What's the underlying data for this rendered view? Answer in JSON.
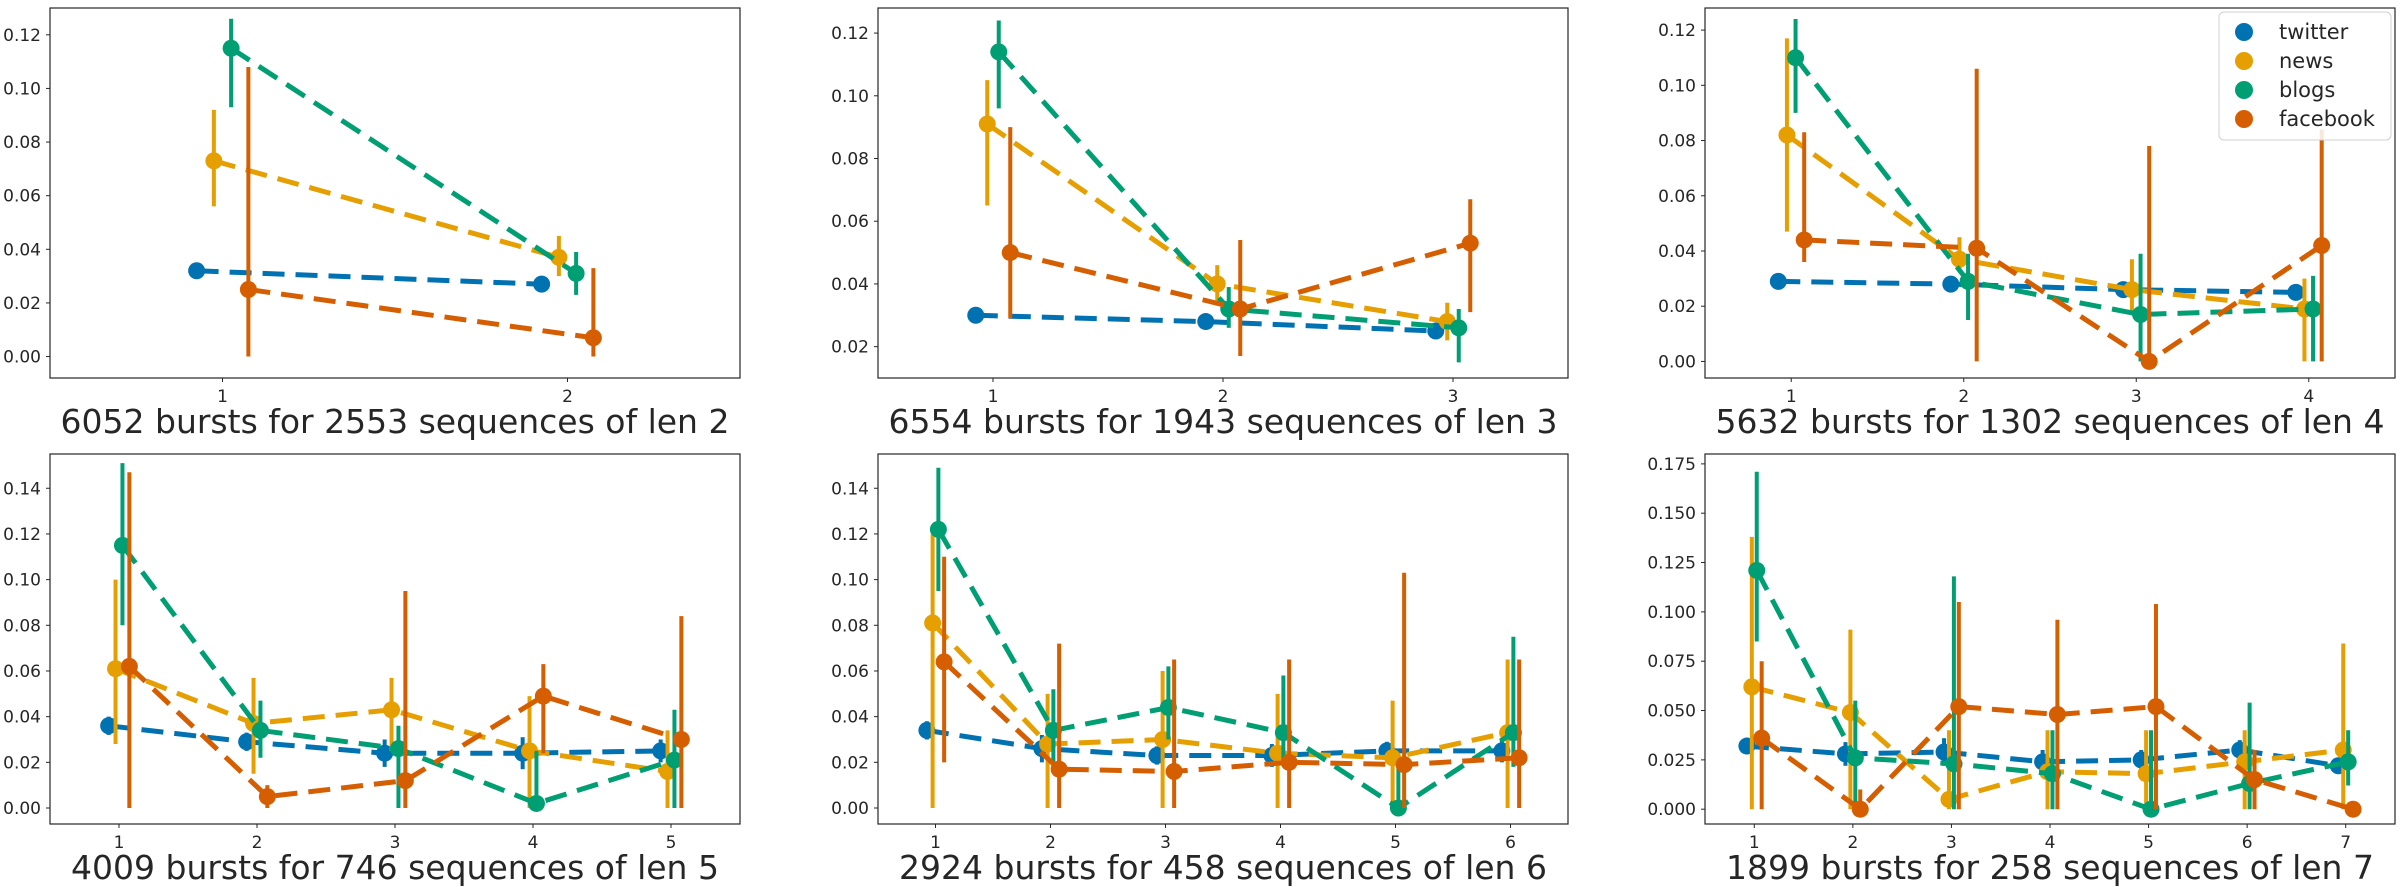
{
  "chart_data": {
    "type": "line",
    "style": "pointplot with error bars, dashed lines",
    "grid": false,
    "legend": {
      "placement": "top-right of third panel",
      "entries": [
        {
          "name": "twitter",
          "color": "#0072B2"
        },
        {
          "name": "news",
          "color": "#E69F00"
        },
        {
          "name": "blogs",
          "color": "#009E73"
        },
        {
          "name": "facebook",
          "color": "#D55E00"
        }
      ]
    },
    "panels": [
      {
        "title": "6052 bursts for 2553 sequences of len 2",
        "x": [
          1,
          2
        ],
        "ylim": [
          -0.008,
          0.13
        ],
        "yticks": [
          "0.00",
          "0.02",
          "0.04",
          "0.06",
          "0.08",
          "0.10",
          "0.12"
        ],
        "ytick_values": [
          0,
          0.02,
          0.04,
          0.06,
          0.08,
          0.1,
          0.12
        ],
        "series": [
          {
            "name": "twitter",
            "values": [
              0.032,
              0.027
            ],
            "err_low": [
              0.03,
              0.025
            ],
            "err_high": [
              0.034,
              0.029
            ]
          },
          {
            "name": "news",
            "values": [
              0.073,
              0.037
            ],
            "err_low": [
              0.056,
              0.03
            ],
            "err_high": [
              0.092,
              0.045
            ]
          },
          {
            "name": "blogs",
            "values": [
              0.115,
              0.031
            ],
            "err_low": [
              0.093,
              0.023
            ],
            "err_high": [
              0.126,
              0.039
            ]
          },
          {
            "name": "facebook",
            "values": [
              0.025,
              0.007
            ],
            "err_low": [
              0.0,
              0.0
            ],
            "err_high": [
              0.108,
              0.033
            ]
          }
        ]
      },
      {
        "title": "6554 bursts for 1943 sequences of len 3",
        "x": [
          1,
          2,
          3
        ],
        "ylim": [
          0.01,
          0.128
        ],
        "yticks": [
          "0.02",
          "0.04",
          "0.06",
          "0.08",
          "0.10",
          "0.12"
        ],
        "ytick_values": [
          0.02,
          0.04,
          0.06,
          0.08,
          0.1,
          0.12
        ],
        "series": [
          {
            "name": "twitter",
            "values": [
              0.03,
              0.028,
              0.025
            ],
            "err_low": [
              0.028,
              0.026,
              0.023
            ],
            "err_high": [
              0.032,
              0.03,
              0.027
            ]
          },
          {
            "name": "news",
            "values": [
              0.091,
              0.04,
              0.028
            ],
            "err_low": [
              0.065,
              0.034,
              0.022
            ],
            "err_high": [
              0.105,
              0.046,
              0.034
            ]
          },
          {
            "name": "blogs",
            "values": [
              0.114,
              0.032,
              0.026
            ],
            "err_low": [
              0.096,
              0.026,
              0.015
            ],
            "err_high": [
              0.124,
              0.039,
              0.032
            ]
          },
          {
            "name": "facebook",
            "values": [
              0.05,
              0.032,
              0.053
            ],
            "err_low": [
              0.029,
              0.017,
              0.031
            ],
            "err_high": [
              0.09,
              0.054,
              0.067
            ]
          }
        ]
      },
      {
        "title": "5632 bursts for 1302 sequences of len 4",
        "x": [
          1,
          2,
          3,
          4
        ],
        "ylim": [
          -0.006,
          0.128
        ],
        "yticks": [
          "0.00",
          "0.02",
          "0.04",
          "0.06",
          "0.08",
          "0.10",
          "0.12"
        ],
        "ytick_values": [
          0,
          0.02,
          0.04,
          0.06,
          0.08,
          0.1,
          0.12
        ],
        "series": [
          {
            "name": "twitter",
            "values": [
              0.029,
              0.028,
              0.026,
              0.025
            ],
            "err_low": [
              0.027,
              0.026,
              0.024,
              0.023
            ],
            "err_high": [
              0.031,
              0.03,
              0.028,
              0.027
            ]
          },
          {
            "name": "news",
            "values": [
              0.082,
              0.037,
              0.026,
              0.019
            ],
            "err_low": [
              0.047,
              0.033,
              0.017,
              0.0
            ],
            "err_high": [
              0.117,
              0.045,
              0.037,
              0.03
            ]
          },
          {
            "name": "blogs",
            "values": [
              0.11,
              0.029,
              0.017,
              0.019
            ],
            "err_low": [
              0.09,
              0.015,
              0.0,
              0.0
            ],
            "err_high": [
              0.124,
              0.039,
              0.039,
              0.031
            ]
          },
          {
            "name": "facebook",
            "values": [
              0.044,
              0.041,
              0.0,
              0.042
            ],
            "err_low": [
              0.036,
              0.0,
              0.0,
              0.0
            ],
            "err_high": [
              0.083,
              0.106,
              0.078,
              0.084
            ]
          }
        ]
      },
      {
        "title": "4009 bursts for 746 sequences of len 5",
        "x": [
          1,
          2,
          3,
          4,
          5
        ],
        "ylim": [
          -0.007,
          0.155
        ],
        "yticks": [
          "0.00",
          "0.02",
          "0.04",
          "0.06",
          "0.08",
          "0.10",
          "0.12",
          "0.14"
        ],
        "ytick_values": [
          0,
          0.02,
          0.04,
          0.06,
          0.08,
          0.1,
          0.12,
          0.14
        ],
        "series": [
          {
            "name": "twitter",
            "values": [
              0.036,
              0.029,
              0.024,
              0.024,
              0.025
            ],
            "err_low": [
              0.032,
              0.025,
              0.018,
              0.017,
              0.02
            ],
            "err_high": [
              0.04,
              0.033,
              0.03,
              0.031,
              0.03
            ]
          },
          {
            "name": "news",
            "values": [
              0.061,
              0.037,
              0.043,
              0.025,
              0.016
            ],
            "err_low": [
              0.028,
              0.015,
              0.025,
              0.0,
              0.0
            ],
            "err_high": [
              0.1,
              0.057,
              0.057,
              0.049,
              0.034
            ]
          },
          {
            "name": "blogs",
            "values": [
              0.115,
              0.034,
              0.026,
              0.002,
              0.021
            ],
            "err_low": [
              0.08,
              0.022,
              0.0,
              0.0,
              0.0
            ],
            "err_high": [
              0.151,
              0.047,
              0.036,
              0.025,
              0.043
            ]
          },
          {
            "name": "facebook",
            "values": [
              0.062,
              0.005,
              0.012,
              0.049,
              0.03
            ],
            "err_low": [
              0.0,
              0.0,
              0.0,
              0.024,
              0.0
            ],
            "err_high": [
              0.147,
              0.01,
              0.095,
              0.063,
              0.084
            ]
          }
        ]
      },
      {
        "title": "2924 bursts for 458 sequences of len 6",
        "x": [
          1,
          2,
          3,
          4,
          5,
          6
        ],
        "ylim": [
          -0.007,
          0.155
        ],
        "yticks": [
          "0.00",
          "0.02",
          "0.04",
          "0.06",
          "0.08",
          "0.10",
          "0.12",
          "0.14"
        ],
        "ytick_values": [
          0,
          0.02,
          0.04,
          0.06,
          0.08,
          0.1,
          0.12,
          0.14
        ],
        "series": [
          {
            "name": "twitter",
            "values": [
              0.034,
              0.026,
              0.023,
              0.023,
              0.025,
              0.025
            ],
            "err_low": [
              0.03,
              0.02,
              0.019,
              0.018,
              0.022,
              0.02
            ],
            "err_high": [
              0.038,
              0.032,
              0.027,
              0.028,
              0.029,
              0.03
            ]
          },
          {
            "name": "news",
            "values": [
              0.081,
              0.028,
              0.03,
              0.024,
              0.022,
              0.033
            ],
            "err_low": [
              0.0,
              0.0,
              0.0,
              0.0,
              0.0,
              0.0
            ],
            "err_high": [
              0.12,
              0.05,
              0.06,
              0.05,
              0.047,
              0.065
            ]
          },
          {
            "name": "blogs",
            "values": [
              0.122,
              0.034,
              0.044,
              0.033,
              0.0,
              0.033
            ],
            "err_low": [
              0.095,
              0.018,
              0.03,
              0.02,
              0.0,
              0.018
            ],
            "err_high": [
              0.149,
              0.052,
              0.062,
              0.058,
              0.018,
              0.075
            ]
          },
          {
            "name": "facebook",
            "values": [
              0.064,
              0.017,
              0.016,
              0.02,
              0.019,
              0.022
            ],
            "err_low": [
              0.02,
              0.0,
              0.0,
              0.0,
              0.0,
              0.0
            ],
            "err_high": [
              0.11,
              0.072,
              0.065,
              0.065,
              0.103,
              0.065
            ]
          }
        ]
      },
      {
        "title": "1899 bursts for 258 sequences of len 7",
        "x": [
          1,
          2,
          3,
          4,
          5,
          6,
          7
        ],
        "ylim": [
          -0.0075,
          0.18
        ],
        "yticks": [
          "0.000",
          "0.025",
          "0.050",
          "0.075",
          "0.100",
          "0.125",
          "0.150",
          "0.175"
        ],
        "ytick_values": [
          0,
          0.025,
          0.05,
          0.075,
          0.1,
          0.125,
          0.15,
          0.175
        ],
        "series": [
          {
            "name": "twitter",
            "values": [
              0.032,
              0.028,
              0.029,
              0.024,
              0.025,
              0.03,
              0.022
            ],
            "err_low": [
              0.028,
              0.022,
              0.022,
              0.018,
              0.02,
              0.025,
              0.018
            ],
            "err_high": [
              0.036,
              0.034,
              0.036,
              0.03,
              0.03,
              0.035,
              0.026
            ]
          },
          {
            "name": "news",
            "values": [
              0.062,
              0.049,
              0.005,
              0.019,
              0.018,
              0.024,
              0.03
            ],
            "err_low": [
              0.0,
              0.0,
              0.0,
              0.0,
              0.0,
              0.0,
              0.0
            ],
            "err_high": [
              0.138,
              0.091,
              0.04,
              0.04,
              0.04,
              0.04,
              0.084
            ]
          },
          {
            "name": "blogs",
            "values": [
              0.121,
              0.026,
              0.023,
              0.018,
              0.0,
              0.013,
              0.024
            ],
            "err_low": [
              0.085,
              0.0,
              0.0,
              0.0,
              0.0,
              0.0,
              0.012
            ],
            "err_high": [
              0.171,
              0.055,
              0.118,
              0.04,
              0.04,
              0.054,
              0.04
            ]
          },
          {
            "name": "facebook",
            "values": [
              0.036,
              0.0,
              0.052,
              0.048,
              0.052,
              0.015,
              0.0
            ],
            "err_low": [
              0.0,
              0.0,
              0.0,
              0.0,
              0.0,
              0.0,
              0.0
            ],
            "err_high": [
              0.075,
              0.01,
              0.105,
              0.096,
              0.104,
              0.03,
              0.0
            ]
          }
        ]
      }
    ]
  }
}
